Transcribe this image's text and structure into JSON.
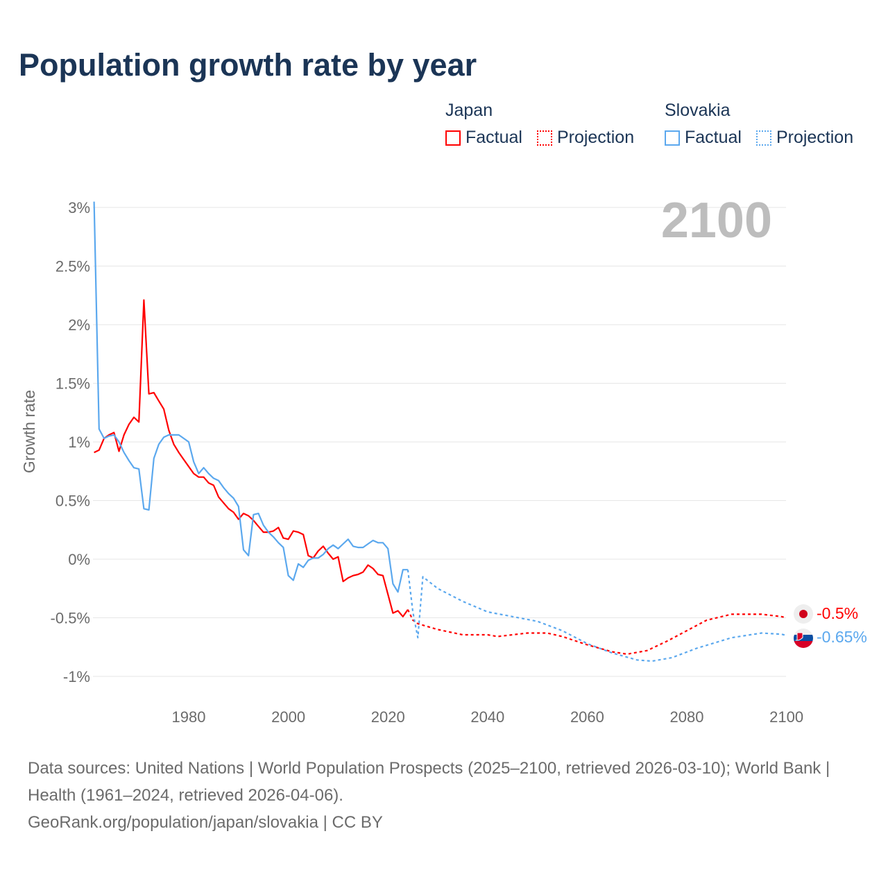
{
  "title": "Population growth rate by year",
  "legend": [
    {
      "country": "Japan",
      "factual_label": "Factual",
      "projection_label": "Projection",
      "color": "#ff0000"
    },
    {
      "country": "Slovakia",
      "factual_label": "Factual",
      "projection_label": "Projection",
      "color": "#5ba8ee"
    }
  ],
  "year_indicator": "2100",
  "end_labels": {
    "japan": "-0.5%",
    "slovakia": "-0.65%"
  },
  "footer": {
    "sources": "Data sources: United Nations | World Population Prospects (2025–2100, retrieved 2026-03-10); World Bank | Health (1961–2024, retrieved 2026-04-06).",
    "credit": "GeoRank.org/population/japan/slovakia | CC BY"
  },
  "chart_data": {
    "type": "line",
    "title": "Population growth rate by year",
    "xlabel": "",
    "ylabel": "Growth rate",
    "xlim": [
      1961,
      2100
    ],
    "ylim": [
      -1.1,
      3.05
    ],
    "x_ticks": [
      1980,
      2000,
      2020,
      2040,
      2060,
      2080,
      2100
    ],
    "x_tick_labels": [
      "1980",
      "2000",
      "2020",
      "2040",
      "2060",
      "2080",
      "2100"
    ],
    "y_ticks": [
      3,
      2.5,
      2,
      1.5,
      1,
      0.5,
      0,
      -0.5,
      -1
    ],
    "y_tick_labels": [
      "3%",
      "2.5%",
      "2%",
      "1.5%",
      "1%",
      "0.5%",
      "0%",
      "-0.5%",
      "-1%"
    ],
    "grid": true,
    "legend_position": "top-right",
    "series": [
      {
        "name": "Japan Factual",
        "color": "#ff0000",
        "style": "solid",
        "x": [
          1961,
          1962,
          1963,
          1964,
          1965,
          1966,
          1967,
          1968,
          1969,
          1970,
          1971,
          1972,
          1973,
          1974,
          1975,
          1976,
          1977,
          1978,
          1979,
          1980,
          1981,
          1982,
          1983,
          1984,
          1985,
          1986,
          1987,
          1988,
          1989,
          1990,
          1991,
          1992,
          1993,
          1994,
          1995,
          1996,
          1997,
          1998,
          1999,
          2000,
          2001,
          2002,
          2003,
          2004,
          2005,
          2006,
          2007,
          2008,
          2009,
          2010,
          2011,
          2012,
          2013,
          2014,
          2015,
          2016,
          2017,
          2018,
          2019,
          2020,
          2021,
          2022,
          2023,
          2024
        ],
        "y": [
          0.91,
          0.93,
          1.03,
          1.06,
          1.08,
          0.92,
          1.06,
          1.15,
          1.21,
          1.17,
          2.21,
          1.41,
          1.42,
          1.35,
          1.28,
          1.1,
          0.98,
          0.91,
          0.85,
          0.79,
          0.73,
          0.7,
          0.7,
          0.65,
          0.63,
          0.53,
          0.48,
          0.43,
          0.4,
          0.34,
          0.39,
          0.37,
          0.33,
          0.28,
          0.23,
          0.23,
          0.24,
          0.27,
          0.18,
          0.17,
          0.24,
          0.23,
          0.21,
          0.03,
          0.01,
          0.07,
          0.11,
          0.05,
          0.0,
          0.02,
          -0.19,
          -0.16,
          -0.14,
          -0.13,
          -0.11,
          -0.05,
          -0.08,
          -0.13,
          -0.14,
          -0.3,
          -0.46,
          -0.44,
          -0.49,
          -0.43
        ]
      },
      {
        "name": "Japan Projection",
        "color": "#ff0000",
        "style": "dotted",
        "x": [
          2024,
          2025,
          2026,
          2030,
          2035,
          2040,
          2042,
          2045,
          2048,
          2052,
          2055,
          2060,
          2065,
          2068,
          2072,
          2076,
          2080,
          2084,
          2089,
          2095,
          2099,
          2100
        ],
        "y": [
          -0.43,
          -0.52,
          -0.55,
          -0.6,
          -0.645,
          -0.645,
          -0.66,
          -0.645,
          -0.63,
          -0.63,
          -0.66,
          -0.73,
          -0.79,
          -0.81,
          -0.78,
          -0.7,
          -0.61,
          -0.52,
          -0.47,
          -0.47,
          -0.49,
          -0.5
        ]
      },
      {
        "name": "Slovakia Factual",
        "color": "#5ba8ee",
        "style": "solid",
        "x": [
          1961,
          1962,
          1963,
          1964,
          1965,
          1966,
          1967,
          1968,
          1969,
          1970,
          1971,
          1972,
          1973,
          1974,
          1975,
          1976,
          1977,
          1978,
          1979,
          1980,
          1981,
          1982,
          1983,
          1984,
          1985,
          1986,
          1987,
          1988,
          1989,
          1990,
          1991,
          1992,
          1993,
          1994,
          1995,
          1996,
          1997,
          1998,
          1999,
          2000,
          2001,
          2002,
          2003,
          2004,
          2005,
          2006,
          2007,
          2008,
          2009,
          2010,
          2011,
          2012,
          2013,
          2014,
          2015,
          2016,
          2017,
          2018,
          2019,
          2020,
          2021,
          2022,
          2023,
          2024
        ],
        "y": [
          3.05,
          1.11,
          1.03,
          1.05,
          1.06,
          1.0,
          0.91,
          0.84,
          0.78,
          0.77,
          0.43,
          0.42,
          0.86,
          0.98,
          1.04,
          1.06,
          1.06,
          1.06,
          1.03,
          1.0,
          0.83,
          0.73,
          0.78,
          0.73,
          0.69,
          0.67,
          0.61,
          0.56,
          0.52,
          0.45,
          0.08,
          0.03,
          0.38,
          0.39,
          0.29,
          0.23,
          0.19,
          0.14,
          0.1,
          -0.14,
          -0.18,
          -0.04,
          -0.07,
          -0.01,
          0.01,
          0.01,
          0.04,
          0.09,
          0.12,
          0.09,
          0.13,
          0.17,
          0.11,
          0.1,
          0.1,
          0.13,
          0.16,
          0.14,
          0.14,
          0.09,
          -0.21,
          -0.28,
          -0.09,
          -0.09
        ]
      },
      {
        "name": "Slovakia Projection",
        "color": "#5ba8ee",
        "style": "dotted",
        "x": [
          2024,
          2025,
          2026,
          2027,
          2030,
          2035,
          2040,
          2045,
          2050,
          2055,
          2060,
          2065,
          2070,
          2073,
          2077,
          2082,
          2089,
          2095,
          2099,
          2100
        ],
        "y": [
          -0.09,
          -0.45,
          -0.67,
          -0.15,
          -0.25,
          -0.36,
          -0.45,
          -0.49,
          -0.53,
          -0.61,
          -0.72,
          -0.8,
          -0.86,
          -0.87,
          -0.84,
          -0.76,
          -0.67,
          -0.63,
          -0.64,
          -0.65
        ]
      }
    ]
  }
}
